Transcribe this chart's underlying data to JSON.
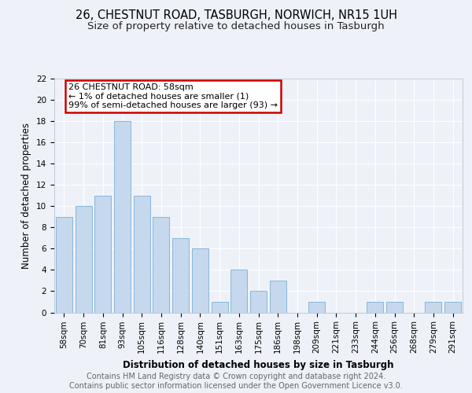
{
  "title1": "26, CHESTNUT ROAD, TASBURGH, NORWICH, NR15 1UH",
  "title2": "Size of property relative to detached houses in Tasburgh",
  "xlabel": "Distribution of detached houses by size in Tasburgh",
  "ylabel": "Number of detached properties",
  "categories": [
    "58sqm",
    "70sqm",
    "81sqm",
    "93sqm",
    "105sqm",
    "116sqm",
    "128sqm",
    "140sqm",
    "151sqm",
    "163sqm",
    "175sqm",
    "186sqm",
    "198sqm",
    "209sqm",
    "221sqm",
    "233sqm",
    "244sqm",
    "256sqm",
    "268sqm",
    "279sqm",
    "291sqm"
  ],
  "values": [
    9,
    10,
    11,
    18,
    11,
    9,
    7,
    6,
    1,
    4,
    2,
    3,
    0,
    1,
    0,
    0,
    1,
    1,
    0,
    1,
    1
  ],
  "bar_color": "#c5d8ed",
  "bar_edge_color": "#7bafd4",
  "annotation_text": "26 CHESTNUT ROAD: 58sqm\n← 1% of detached houses are smaller (1)\n99% of semi-detached houses are larger (93) →",
  "annotation_box_color": "#ffffff",
  "annotation_box_edge_color": "#cc0000",
  "ylim": [
    0,
    22
  ],
  "yticks": [
    0,
    2,
    4,
    6,
    8,
    10,
    12,
    14,
    16,
    18,
    20,
    22
  ],
  "footer_line1": "Contains HM Land Registry data © Crown copyright and database right 2024.",
  "footer_line2": "Contains public sector information licensed under the Open Government Licence v3.0.",
  "bg_color": "#eef2f8",
  "plot_bg_color": "#eef2f8",
  "grid_color": "#ffffff",
  "title_fontsize": 10.5,
  "subtitle_fontsize": 9.5,
  "axis_label_fontsize": 8.5,
  "tick_fontsize": 7.5,
  "footer_fontsize": 7,
  "ann_fontsize": 8
}
